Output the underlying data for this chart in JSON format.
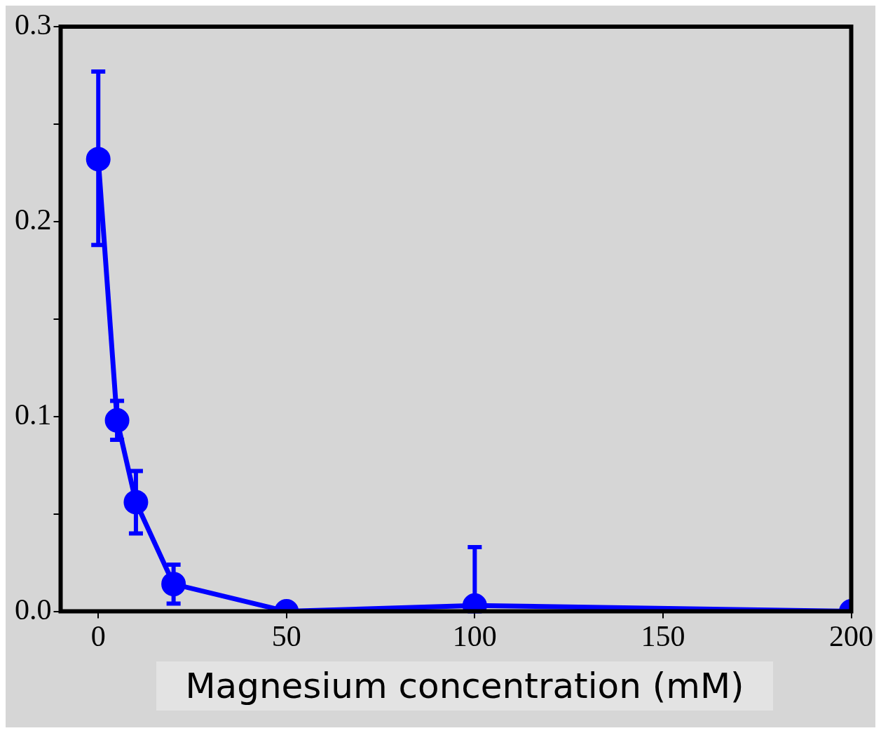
{
  "chart_data": {
    "type": "line",
    "xlabel": "Magnesium concentration (mM)",
    "x": [
      0,
      5,
      10,
      20,
      50,
      100,
      200
    ],
    "series": [
      {
        "color": "#0000ff",
        "values": [
          0.232,
          0.098,
          0.056,
          0.014,
          0.0,
          0.003,
          0.0
        ],
        "errors": [
          [
            0.188,
            0.277
          ],
          [
            0.088,
            0.108
          ],
          [
            0.04,
            0.072
          ],
          [
            0.004,
            0.024
          ],
          null,
          [
            0.0,
            0.033
          ],
          null
        ]
      }
    ],
    "xlim": [
      -10,
      200
    ],
    "xticks": [
      0,
      50,
      100,
      150,
      200
    ],
    "ylim": [
      0,
      0.3
    ],
    "yticks": [
      {
        "value": 0,
        "label": "0.0"
      },
      {
        "value": 0.05,
        "label": null
      },
      {
        "value": 0.1,
        "label": "0.1"
      },
      {
        "value": 0.15,
        "label": null
      },
      {
        "value": 0.2,
        "label": "0.2"
      },
      {
        "value": 0.25,
        "label": null
      },
      {
        "value": 0.3,
        "label": "0.3"
      }
    ],
    "grid": false,
    "legend": false,
    "marker": "circle",
    "line_style": "solid"
  }
}
